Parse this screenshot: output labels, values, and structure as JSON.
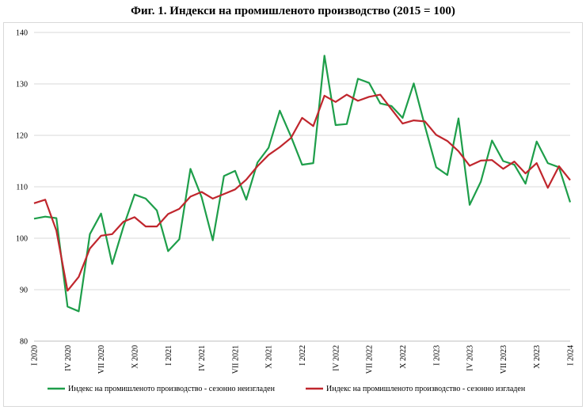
{
  "chart_data": {
    "type": "line",
    "title": "Фиг. 1. Индекси на промишленото производство (2015 = 100)",
    "ylim": [
      80,
      140
    ],
    "yticks": [
      80,
      90,
      100,
      110,
      120,
      130,
      140
    ],
    "grid": true,
    "legend_position": "bottom",
    "x_tick_labels": [
      {
        "index": 0,
        "label": "I 2020"
      },
      {
        "index": 3,
        "label": "IV 2020"
      },
      {
        "index": 6,
        "label": "VII 2020"
      },
      {
        "index": 9,
        "label": "X 2020"
      },
      {
        "index": 12,
        "label": "I 2021"
      },
      {
        "index": 15,
        "label": "IV 2021"
      },
      {
        "index": 18,
        "label": "VII 2021"
      },
      {
        "index": 21,
        "label": "X 2021"
      },
      {
        "index": 24,
        "label": "I 2022"
      },
      {
        "index": 27,
        "label": "IV 2022"
      },
      {
        "index": 30,
        "label": "VII 2022"
      },
      {
        "index": 33,
        "label": "X 2022"
      },
      {
        "index": 36,
        "label": "I 2023"
      },
      {
        "index": 39,
        "label": "IV 2023"
      },
      {
        "index": 42,
        "label": "VII 2023"
      },
      {
        "index": 45,
        "label": "X 2023"
      },
      {
        "index": 48,
        "label": "I 2024"
      }
    ],
    "series": [
      {
        "name": "Индекс на промишленото производство - сезонно  неизгладен",
        "color": "#1e9e4a",
        "values": [
          103.8,
          104.2,
          103.9,
          86.7,
          85.8,
          100.8,
          104.8,
          95.0,
          102.2,
          108.5,
          107.7,
          105.4,
          97.5,
          99.8,
          113.5,
          108.0,
          99.6,
          112.1,
          113.1,
          107.5,
          114.7,
          117.6,
          124.8,
          119.8,
          114.3,
          114.6,
          135.5,
          122.0,
          122.2,
          131.0,
          130.2,
          126.2,
          125.7,
          123.4,
          130.1,
          121.8,
          113.8,
          112.3,
          123.3,
          106.5,
          111.0,
          119.0,
          115.0,
          114.3,
          110.6,
          118.8,
          114.6,
          113.8,
          107.0
        ]
      },
      {
        "name": "Индекс на промишленото производство - сезонно изгладен",
        "color": "#c0262d",
        "values": [
          106.8,
          107.5,
          101.5,
          89.8,
          92.5,
          98.0,
          100.5,
          100.8,
          103.2,
          104.1,
          102.3,
          102.3,
          104.7,
          105.7,
          108.1,
          109.0,
          107.7,
          108.6,
          109.5,
          111.4,
          114.0,
          116.2,
          117.7,
          119.5,
          123.4,
          121.8,
          127.7,
          126.5,
          127.9,
          126.7,
          127.5,
          127.9,
          125.1,
          122.3,
          122.9,
          122.7,
          120.1,
          118.9,
          116.9,
          114.1,
          115.1,
          115.2,
          113.5,
          114.9,
          112.6,
          114.6,
          109.8,
          114.0,
          111.3
        ]
      }
    ]
  }
}
